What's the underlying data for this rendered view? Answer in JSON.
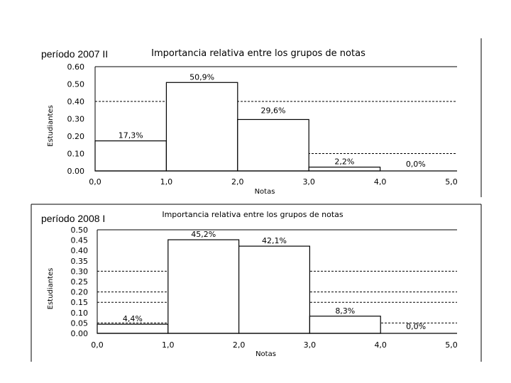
{
  "chart_data": [
    {
      "type": "bar",
      "period_label": "período 2007 II",
      "title": "Importancia relativa entre los grupos de notas",
      "xlabel": "Notas",
      "ylabel": "Estudiantes",
      "x_ticks": [
        "0,0",
        "1,0",
        "2,0",
        "3,0",
        "4,0",
        "5,0"
      ],
      "y_ticks": [
        "0.00",
        "0.10",
        "0.20",
        "0.30",
        "0.40",
        "0.50",
        "0.60"
      ],
      "y_tick_values": [
        0,
        0.1,
        0.2,
        0.3,
        0.4,
        0.5,
        0.6
      ],
      "ylim": [
        0,
        0.6
      ],
      "xlim": [
        0,
        5
      ],
      "bins": [
        [
          0,
          1
        ],
        [
          1,
          2
        ],
        [
          2,
          3
        ],
        [
          3,
          4
        ],
        [
          4,
          5
        ]
      ],
      "values": [
        0.173,
        0.509,
        0.296,
        0.022,
        0.0
      ],
      "data_labels": [
        "17,3%",
        "50,9%",
        "29,6%",
        "2,2%",
        "0,0%"
      ],
      "dashed_gridlines": [
        0.1,
        0.4
      ],
      "grid": "dashed"
    },
    {
      "type": "bar",
      "period_label": "período 2008 I",
      "title": "Importancia relativa entre los grupos de notas",
      "xlabel": "Notas",
      "ylabel": "Estudiantes",
      "x_ticks": [
        "0,0",
        "1,0",
        "2,0",
        "3,0",
        "4,0",
        "5,0"
      ],
      "y_ticks": [
        "0.00",
        "0.05",
        "0.10",
        "0.15",
        "0.20",
        "0.25",
        "0.30",
        "0.35",
        "0.40",
        "0.45",
        "0.50"
      ],
      "y_tick_values": [
        0,
        0.05,
        0.1,
        0.15,
        0.2,
        0.25,
        0.3,
        0.35,
        0.4,
        0.45,
        0.5
      ],
      "ylim": [
        0,
        0.5
      ],
      "xlim": [
        0,
        5
      ],
      "bins": [
        [
          0,
          1
        ],
        [
          1,
          2
        ],
        [
          2,
          3
        ],
        [
          3,
          4
        ],
        [
          4,
          5
        ]
      ],
      "values": [
        0.044,
        0.452,
        0.421,
        0.083,
        0.0
      ],
      "data_labels": [
        "4,4%",
        "45,2%",
        "42,1%",
        "8,3%",
        "0,0%"
      ],
      "dashed_gridlines": [
        0.05,
        0.15,
        0.2,
        0.3
      ],
      "grid": "dashed"
    }
  ]
}
